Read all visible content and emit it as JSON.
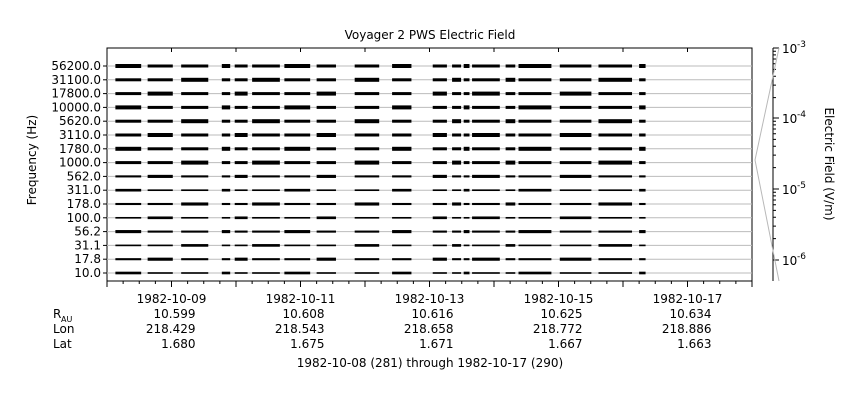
{
  "chart_data": {
    "type": "line",
    "title": "Voyager 2 PWS Electric Field",
    "ylabel": "Frequency (Hz)",
    "right_label": "Electric Field (V/m)",
    "footer": "1982-10-08 (281) through 1982-10-17 (290)",
    "channels": [
      "56200.0",
      "31100.0",
      "17800.0",
      "10000.0",
      "5620.0",
      "3110.0",
      "1780.0",
      "1000.0",
      "562.0",
      "311.0",
      "178.0",
      "100.0",
      "56.2",
      "31.1",
      "17.8",
      "10.0"
    ],
    "color_scale": {
      "labels": [
        "10",
        "10",
        "10",
        "10"
      ],
      "exponents": [
        "-3",
        "-4",
        "-5",
        "-6"
      ]
    },
    "x_axis": {
      "start_day": 281,
      "end_day": 291,
      "tick_dates": [
        "1982-10-09",
        "1982-10-11",
        "1982-10-13",
        "1982-10-15",
        "1982-10-17"
      ],
      "row_labels": [
        "R",
        "Lon",
        "Lat"
      ],
      "row_label_sub": "AU",
      "ephemeris": [
        [
          "10.599",
          "218.429",
          "1.680"
        ],
        [
          "10.608",
          "218.543",
          "1.675"
        ],
        [
          "10.616",
          "218.658",
          "1.671"
        ],
        [
          "10.625",
          "218.772",
          "1.667"
        ],
        [
          "10.634",
          "218.886",
          "1.663"
        ]
      ]
    },
    "data_segments": [
      [
        281.13,
        281.53
      ],
      [
        281.63,
        282.02
      ],
      [
        282.15,
        282.57
      ],
      [
        282.78,
        282.91
      ],
      [
        282.98,
        283.18
      ],
      [
        283.25,
        283.68
      ],
      [
        283.75,
        284.15
      ],
      [
        284.25,
        284.55
      ],
      [
        284.84,
        285.22
      ],
      [
        285.42,
        285.72
      ],
      [
        286.05,
        286.27
      ],
      [
        286.35,
        286.49
      ],
      [
        286.53,
        286.62
      ],
      [
        286.66,
        287.09
      ],
      [
        287.18,
        287.33
      ],
      [
        287.38,
        287.89
      ],
      [
        288.02,
        288.51
      ],
      [
        288.62,
        289.14
      ],
      [
        289.25,
        289.35
      ]
    ],
    "grid": true
  }
}
